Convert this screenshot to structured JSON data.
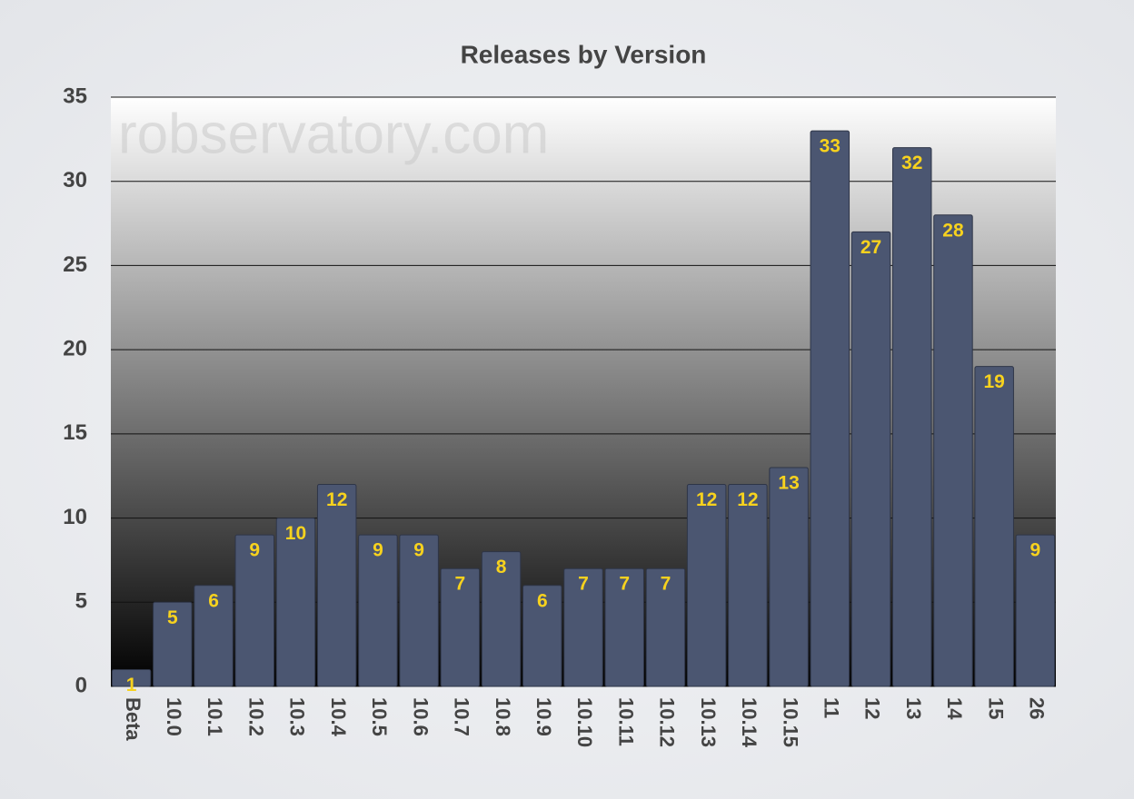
{
  "chart_data": {
    "type": "bar",
    "title": "Releases by Version",
    "watermark": "robservatory.com",
    "categories": [
      "Beta",
      "10.0",
      "10.1",
      "10.2",
      "10.3",
      "10.4",
      "10.5",
      "10.6",
      "10.7",
      "10.8",
      "10.9",
      "10.10",
      "10.11",
      "10.12",
      "10.13",
      "10.14",
      "10.15",
      "11",
      "12",
      "13",
      "14",
      "15",
      "26"
    ],
    "values": [
      1,
      5,
      6,
      9,
      10,
      12,
      9,
      9,
      7,
      8,
      6,
      7,
      7,
      7,
      12,
      12,
      13,
      33,
      27,
      32,
      28,
      19,
      9
    ],
    "color": "#4b5671",
    "label_color": "#f7d21e",
    "ylim": [
      0,
      35
    ],
    "yticks": [
      0,
      5,
      10,
      15,
      20,
      25,
      30,
      35
    ],
    "grid": true
  }
}
